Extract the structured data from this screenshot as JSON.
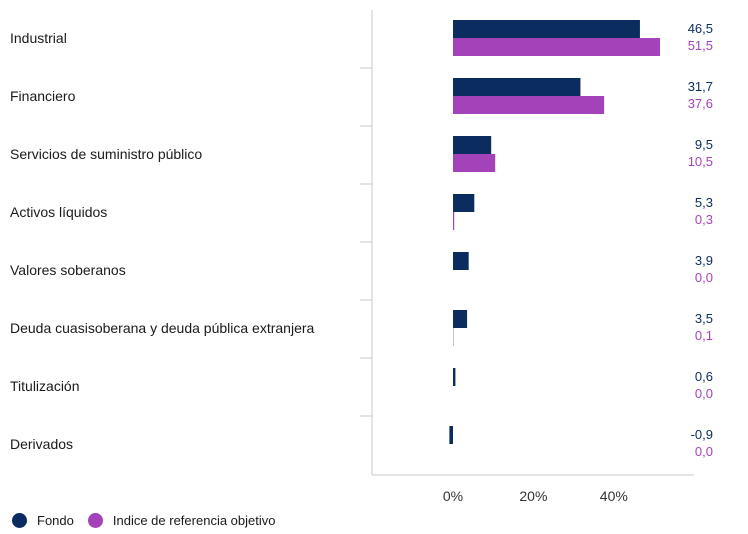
{
  "chart_data": {
    "type": "bar",
    "orientation": "horizontal",
    "categories": [
      "Industrial",
      "Financiero",
      "Servicios de suministro público",
      "Activos líquidos",
      "Valores soberanos",
      "Deuda cuasisoberana y deuda pública extranjera",
      "Titulización",
      "Derivados"
    ],
    "series": [
      {
        "name": "Fondo",
        "color": "#0a2c5e",
        "values": [
          46.5,
          31.7,
          9.5,
          5.3,
          3.9,
          3.5,
          0.6,
          -0.9
        ],
        "labels": [
          "46,5",
          "31,7",
          "9,5",
          "5,3",
          "3,9",
          "3,5",
          "0,6",
          "-0,9"
        ]
      },
      {
        "name": "Indice de referencia objetivo",
        "color": "#a442b9",
        "values": [
          51.5,
          37.6,
          10.5,
          0.3,
          0.0,
          0.1,
          0.0,
          0.0
        ],
        "labels": [
          "51,5",
          "37,6",
          "10,5",
          "0,3",
          "0,0",
          "0,1",
          "0,0",
          "0,0"
        ]
      }
    ],
    "x_ticks": [
      0,
      20,
      40
    ],
    "x_tick_labels": [
      "0%",
      "20%",
      "40%"
    ],
    "xlim": [
      -20,
      60
    ],
    "grid": false,
    "legend_position": "bottom-left"
  },
  "legend": {
    "fondo": "Fondo",
    "indice": "Indice de referencia objetivo"
  }
}
